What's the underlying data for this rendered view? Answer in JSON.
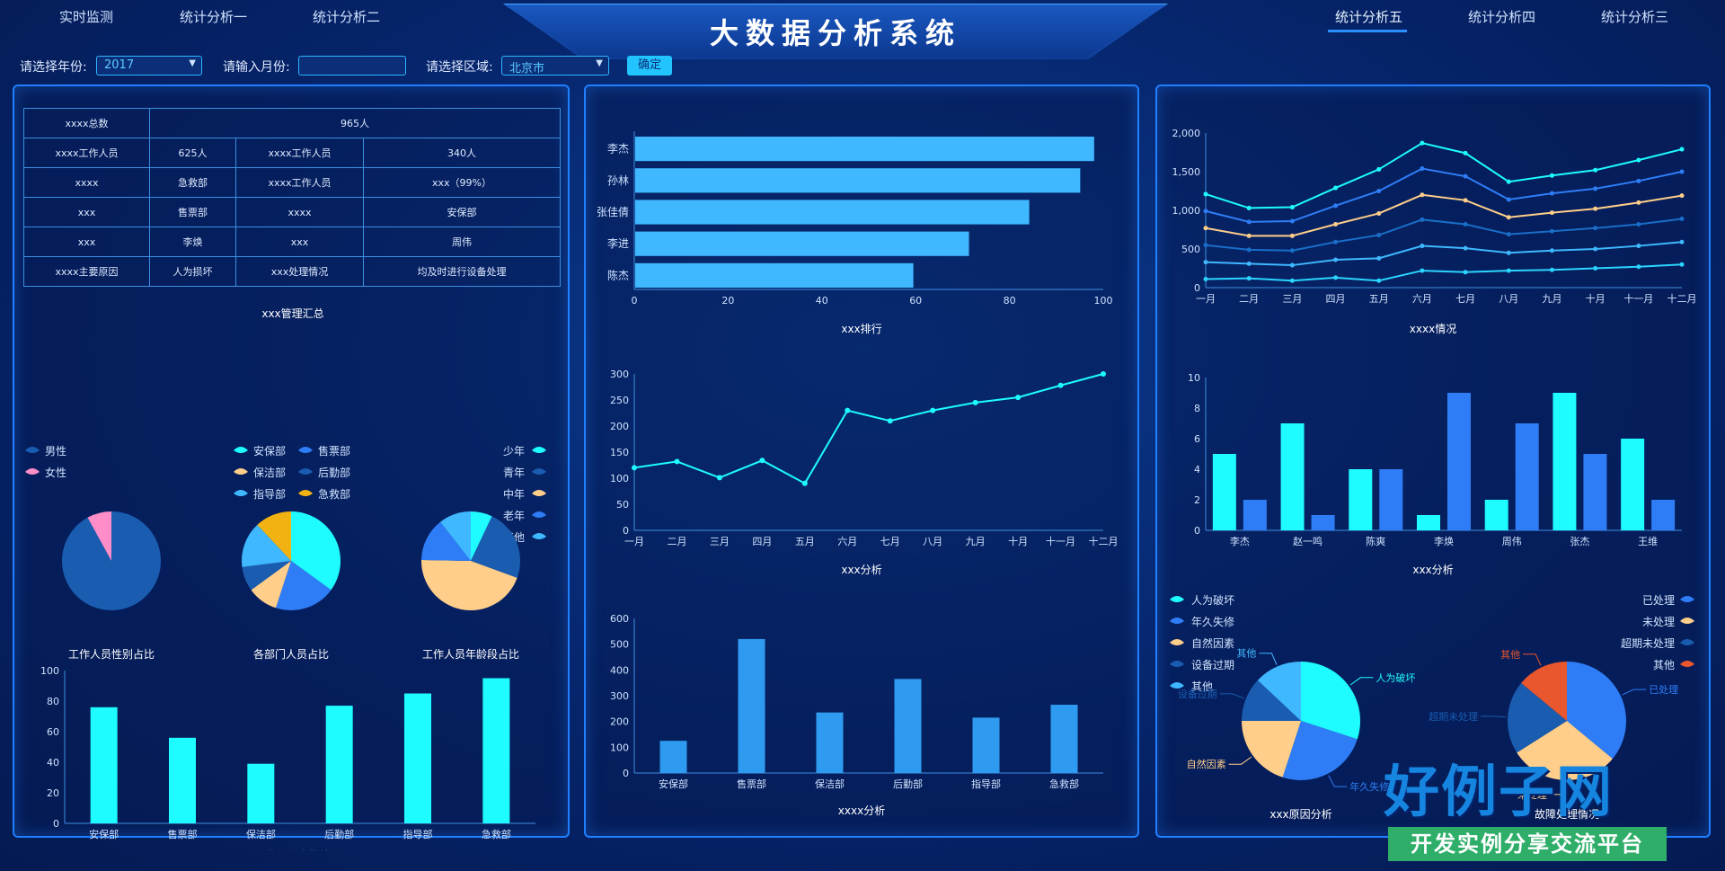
{
  "app_title": "大数据分析系统",
  "nav_left": [
    "实时监测",
    "统计分析一",
    "统计分析二"
  ],
  "nav_right": [
    "统计分析五",
    "统计分析四",
    "统计分析三"
  ],
  "filters": {
    "year_label": "请选择年份:",
    "year_value": "2017",
    "month_label": "请输入月份:",
    "month_value": "",
    "region_label": "请选择区域:",
    "region_value": "北京市",
    "confirm_label": "确定"
  },
  "summary_table": {
    "rows": [
      [
        "xxxx总数",
        "965人"
      ],
      [
        "xxxx工作人员",
        "625人",
        "xxxx工作人员",
        "340人"
      ],
      [
        "xxxx",
        "急救部",
        "xxxx工作人员",
        "xxx（99%）"
      ],
      [
        "xxx",
        "售票部",
        "xxxx",
        "安保部"
      ],
      [
        "xxx",
        "李焕",
        "xxx",
        "周伟"
      ],
      [
        "xxxx主要原因",
        "人为损坏",
        "xxx处理情况",
        "均及时进行设备处理"
      ]
    ],
    "caption": "xxx管理汇总"
  },
  "colors": {
    "cyan": "#1efcff",
    "blue": "#2f7df6",
    "light_blue": "#3fb8ff",
    "peach": "#ffce8a",
    "dark_blue": "#1a5cb0",
    "pink": "#ff8dc8",
    "orange": "#f2b312",
    "red_orange": "#e8572e"
  },
  "chart_data": [
    {
      "type": "pie",
      "caption": "工作人员性别占比",
      "legend": [
        "男性",
        "女性"
      ],
      "values": [
        92,
        8
      ]
    },
    {
      "type": "pie",
      "caption": "各部门人员占比",
      "legend": [
        "安保部",
        "售票部",
        "保洁部",
        "后勤部",
        "指导部",
        "急救部"
      ],
      "values": [
        35,
        20,
        10,
        8,
        15,
        12
      ]
    },
    {
      "type": "pie",
      "caption": "工作人员年龄段占比",
      "legend": [
        "少年",
        "青年",
        "中年",
        "老年",
        "其他"
      ],
      "values": [
        6,
        20,
        38,
        12,
        9
      ]
    },
    {
      "type": "bar",
      "caption": "景区各部门出勤情况",
      "categories": [
        "安保部",
        "售票部",
        "保洁部",
        "后勤部",
        "指导部",
        "急救部"
      ],
      "values": [
        76,
        56,
        39,
        77,
        85,
        95
      ],
      "ylim": [
        0,
        100
      ],
      "yticks": [
        0,
        20,
        40,
        60,
        80,
        100
      ]
    },
    {
      "type": "bar",
      "orientation": "horizontal",
      "caption": "xxx排行",
      "categories": [
        "李杰",
        "孙林",
        "张佳倩",
        "李进",
        "陈杰"
      ],
      "values": [
        99,
        96,
        85,
        72,
        60
      ],
      "xlim": [
        0,
        100
      ],
      "xticks": [
        0,
        20,
        40,
        60,
        80,
        100
      ]
    },
    {
      "type": "line",
      "caption": "xxx分析",
      "categories": [
        "一月",
        "二月",
        "三月",
        "四月",
        "五月",
        "六月",
        "七月",
        "八月",
        "九月",
        "十月",
        "十一月",
        "十二月"
      ],
      "values": [
        120,
        132,
        101,
        134,
        90,
        230,
        210,
        230,
        245,
        255,
        278,
        300
      ],
      "ylim": [
        0,
        300
      ],
      "yticks": [
        0,
        50,
        100,
        150,
        200,
        250,
        300
      ]
    },
    {
      "type": "bar",
      "caption": "xxxx分析",
      "categories": [
        "安保部",
        "售票部",
        "保洁部",
        "后勤部",
        "指导部",
        "急救部"
      ],
      "values": [
        125,
        520,
        235,
        365,
        215,
        265
      ],
      "ylim": [
        0,
        600
      ],
      "yticks": [
        0,
        100,
        200,
        300,
        400,
        500,
        600
      ]
    },
    {
      "type": "line",
      "caption": "xxxx情况",
      "categories": [
        "一月",
        "二月",
        "三月",
        "四月",
        "五月",
        "六月",
        "七月",
        "八月",
        "九月",
        "十月",
        "十一月",
        "十二月"
      ],
      "ylim": [
        0,
        2000
      ],
      "yticks": [
        0,
        500,
        1000,
        1500,
        2000
      ],
      "series": [
        {
          "color": "#1efcff",
          "values": [
            1210,
            1030,
            1040,
            1290,
            1530,
            1870,
            1740,
            1370,
            1450,
            1520,
            1650,
            1790
          ]
        },
        {
          "color": "#2f7df6",
          "values": [
            990,
            850,
            860,
            1060,
            1250,
            1540,
            1440,
            1140,
            1220,
            1280,
            1380,
            1500
          ]
        },
        {
          "color": "#ffce8a",
          "values": [
            770,
            670,
            670,
            820,
            960,
            1200,
            1130,
            910,
            970,
            1020,
            1100,
            1190
          ]
        },
        {
          "color": "#1a6dc8",
          "values": [
            550,
            490,
            480,
            590,
            680,
            880,
            820,
            690,
            730,
            770,
            820,
            890
          ]
        },
        {
          "color": "#3fb8ff",
          "values": [
            330,
            310,
            290,
            360,
            380,
            540,
            510,
            450,
            480,
            500,
            540,
            590
          ]
        },
        {
          "color": "#2bd4ff",
          "values": [
            110,
            120,
            90,
            130,
            90,
            220,
            200,
            220,
            230,
            250,
            270,
            300
          ]
        }
      ]
    },
    {
      "type": "bar",
      "caption": "xxx分析",
      "categories": [
        "李杰",
        "赵一鸣",
        "陈爽",
        "李焕",
        "周伟",
        "张杰",
        "王维"
      ],
      "ylim": [
        0,
        10
      ],
      "yticks": [
        0,
        2,
        4,
        6,
        8,
        10
      ],
      "series": [
        {
          "color": "#1efcff",
          "values": [
            5,
            7,
            4,
            1,
            2,
            9,
            6
          ]
        },
        {
          "color": "#2f7df6",
          "values": [
            2,
            1,
            4,
            9,
            7,
            5,
            2
          ]
        }
      ]
    },
    {
      "type": "pie",
      "caption": "xxx原因分析",
      "legend": [
        "人为破坏",
        "年久失修",
        "自然因素",
        "设备过期",
        "其他"
      ],
      "labels": [
        "人为破坏",
        "年久失修",
        "自然因素",
        "设备过期",
        "其他"
      ],
      "values": [
        30,
        25,
        20,
        12,
        13
      ]
    },
    {
      "type": "pie",
      "caption": "故障处理情况",
      "legend": [
        "已处理",
        "未处理",
        "超期未处理",
        "其他"
      ],
      "labels": [
        "已处理",
        "未处理",
        "超期未处理",
        "其他"
      ],
      "values": [
        36,
        30,
        20,
        14
      ]
    }
  ],
  "watermark": {
    "big": "好例子网",
    "small": "开发实例分享交流平台"
  }
}
